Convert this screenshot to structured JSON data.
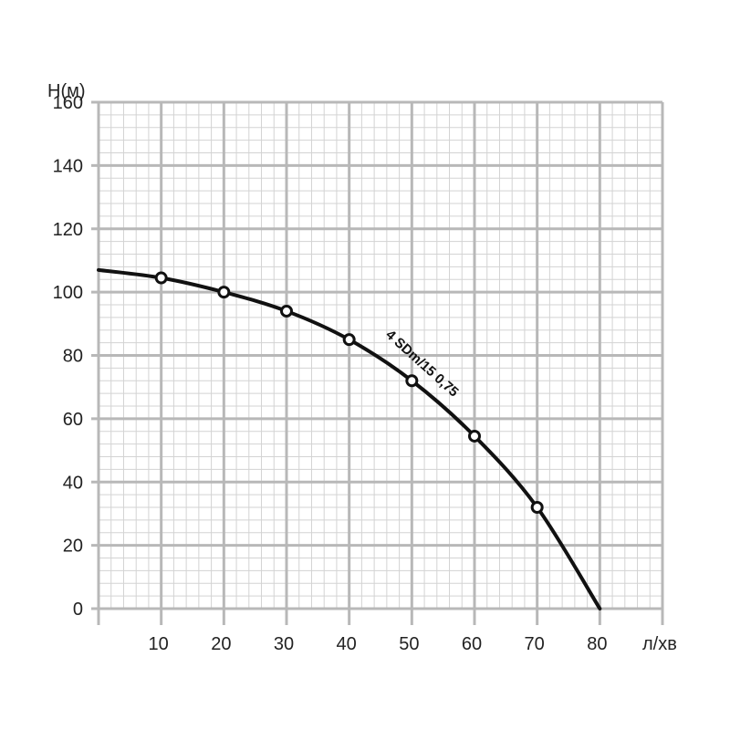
{
  "chart_data": {
    "type": "line",
    "ylabel": "H(м)",
    "xlabel": "л/хв",
    "xlim": [
      0,
      90
    ],
    "ylim": [
      0,
      160
    ],
    "x_ticks": [
      10,
      20,
      30,
      40,
      50,
      60,
      70,
      80
    ],
    "y_ticks": [
      0,
      20,
      40,
      60,
      80,
      100,
      120,
      140,
      160
    ],
    "grid": true,
    "series": [
      {
        "name": "4 SDm/15 0,75",
        "color": "#111111",
        "curve_x": [
          0,
          10,
          20,
          30,
          40,
          50,
          60,
          70,
          80
        ],
        "curve_y": [
          107,
          104.5,
          100,
          94,
          85,
          72,
          54.5,
          32,
          0
        ],
        "marker_x": [
          10,
          20,
          30,
          40,
          50,
          60,
          70
        ],
        "marker_y": [
          104.5,
          100,
          94,
          85,
          72,
          54.5,
          32
        ]
      }
    ]
  }
}
